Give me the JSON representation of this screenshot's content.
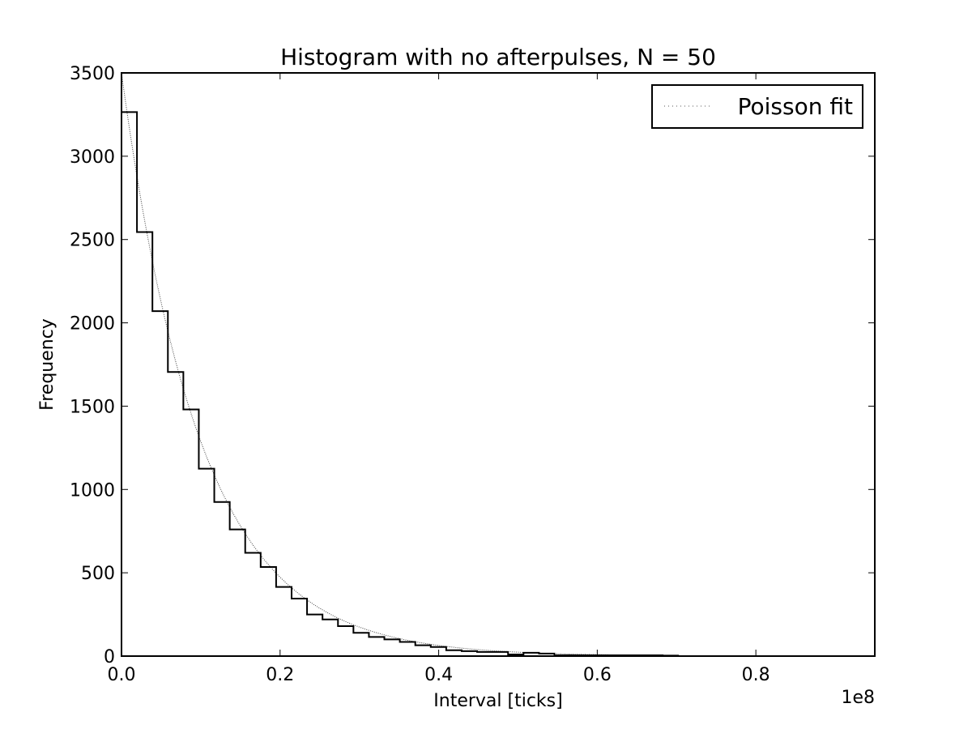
{
  "chart_data": {
    "type": "histogram",
    "title": "Histogram with no afterpulses, N = 50",
    "xlabel": "Interval [ticks]",
    "ylabel": "Frequency",
    "x_offset_label": "1e8",
    "xlim": [
      0.0,
      0.95
    ],
    "ylim": [
      0,
      3500
    ],
    "x_ticks": [
      0.0,
      0.2,
      0.4,
      0.6,
      0.8
    ],
    "x_tick_labels": [
      "0.0",
      "0.2",
      "0.4",
      "0.6",
      "0.8"
    ],
    "y_ticks": [
      0,
      500,
      1000,
      1500,
      2000,
      2500,
      3000,
      3500
    ],
    "y_tick_labels": [
      "0",
      "500",
      "1000",
      "1500",
      "2000",
      "2500",
      "3000",
      "3500"
    ],
    "bin_width": 0.0195,
    "bin_start": 0.0,
    "counts": [
      3265,
      2545,
      2070,
      1705,
      1480,
      1125,
      925,
      760,
      620,
      535,
      415,
      345,
      250,
      220,
      180,
      140,
      115,
      100,
      85,
      65,
      55,
      35,
      30,
      25,
      25,
      10,
      20,
      15,
      5,
      5,
      5,
      5,
      5,
      5,
      5,
      3
    ],
    "fit": {
      "name": "Poisson fit",
      "A": 3500,
      "decay_constant": 0.1,
      "x_end": 0.7,
      "style": "dotted"
    },
    "legend": {
      "entries": [
        "Poisson fit"
      ],
      "placement": "top-right"
    },
    "grid": false
  }
}
